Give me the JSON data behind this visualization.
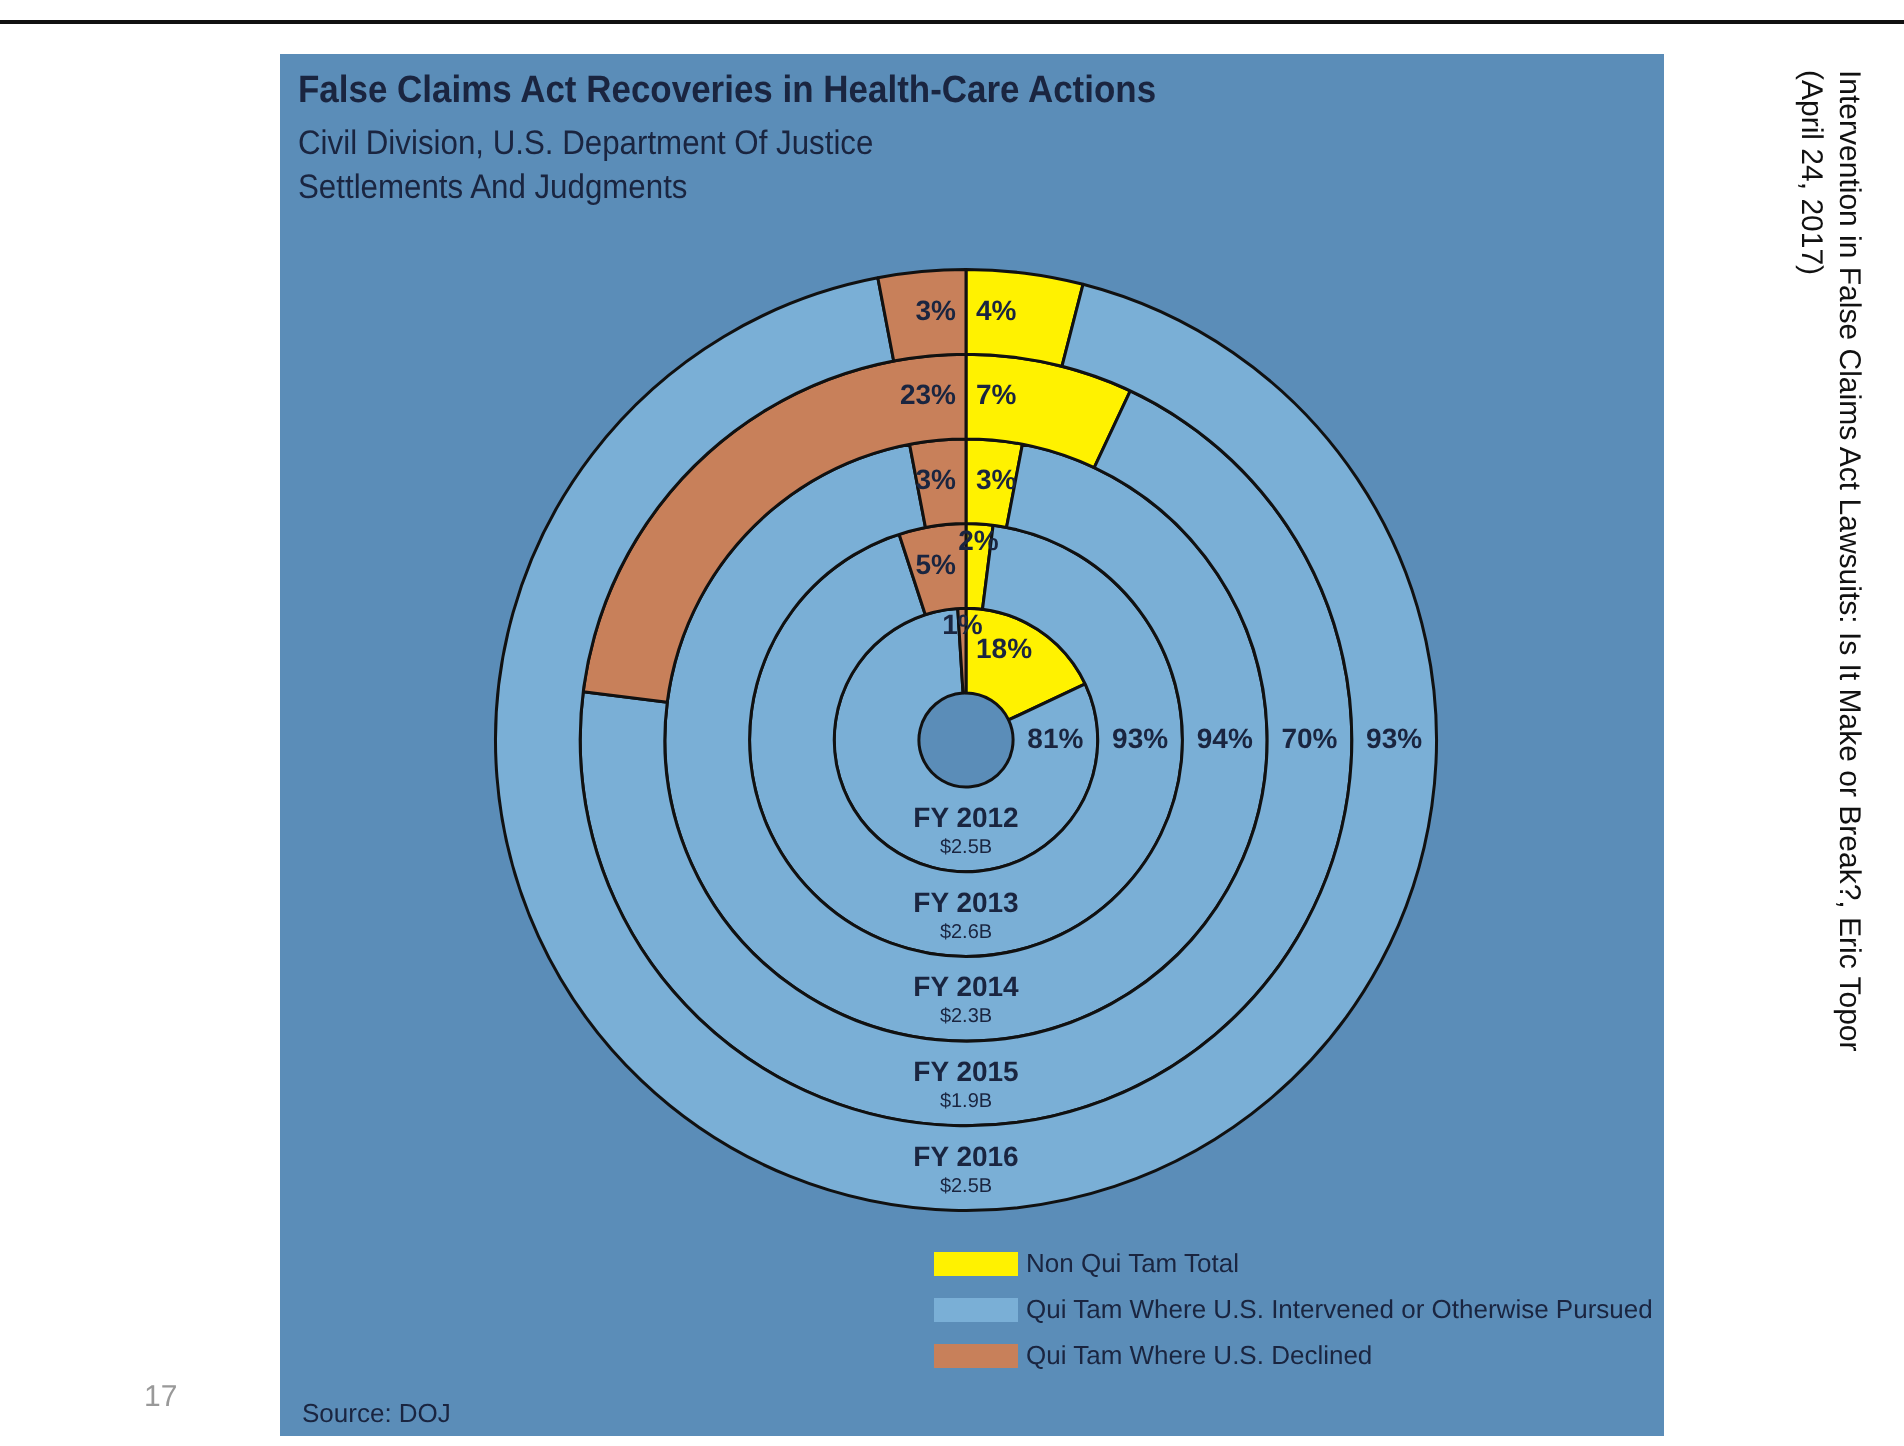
{
  "chart_data": {
    "type": "donut",
    "title": "False Claims Act Recoveries in Health-Care Actions",
    "subtitle": "Civil Division, U.S. Department Of Justice\nSettlements And Judgments",
    "categories": [
      "Non Qui Tam Total",
      "Qui Tam Where U.S. Intervened or Otherwise Pursued",
      "Qui Tam Where U.S. Declined"
    ],
    "colors": [
      "#fff200",
      "#7aafd6",
      "#c8805a"
    ],
    "series": [
      {
        "name": "FY 2012\n$2.5B",
        "values": [
          18,
          81,
          1
        ],
        "value_labels": [
          "18%",
          "81%",
          "1%"
        ]
      },
      {
        "name": "FY 2013\n$2.6B",
        "values": [
          2,
          93,
          5
        ],
        "value_labels": [
          "2%",
          "93%",
          "5%"
        ]
      },
      {
        "name": "FY 2014\n$2.3B",
        "values": [
          3,
          94,
          3
        ],
        "value_labels": [
          "3%",
          "94%",
          "3%"
        ]
      },
      {
        "name": "FY 2015\n$1.9B",
        "values": [
          7,
          70,
          23
        ],
        "value_labels": [
          "7%",
          "70%",
          "23%"
        ]
      },
      {
        "name": "FY 2016\n$2.5B",
        "values": [
          4,
          93,
          3
        ],
        "value_labels": [
          "4%",
          "93%",
          "3%"
        ]
      }
    ],
    "legend": "bottom",
    "annotations": [
      "Source: DOJ",
      "17",
      "Intervention in False Claims Act Lawsuits: Is It Make or Break?, Eric Topor (April 24, 2017)"
    ]
  }
}
